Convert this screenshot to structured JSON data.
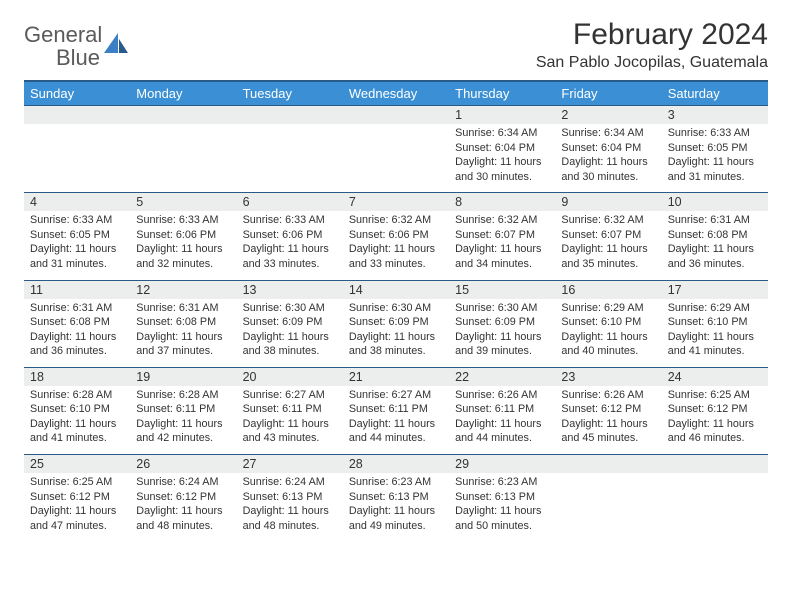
{
  "brand": {
    "name1": "General",
    "name2": "Blue"
  },
  "title": "February 2024",
  "location": "San Pablo Jocopilas, Guatemala",
  "colors": {
    "header_bg": "#3b8fd4",
    "header_border": "#2a5a87",
    "daynum_bg": "#eceded",
    "text": "#333333",
    "brand_gray": "#5a5a5a",
    "brand_blue": "#3b7fc4"
  },
  "typography": {
    "title_fontsize": 30,
    "location_fontsize": 16,
    "dayheader_fontsize": 13,
    "daynum_fontsize": 12.5,
    "detail_fontsize": 10.8
  },
  "day_headers": [
    "Sunday",
    "Monday",
    "Tuesday",
    "Wednesday",
    "Thursday",
    "Friday",
    "Saturday"
  ],
  "weeks": [
    [
      null,
      null,
      null,
      null,
      {
        "n": "1",
        "sr": "6:34 AM",
        "ss": "6:04 PM",
        "dl": "11 hours and 30 minutes."
      },
      {
        "n": "2",
        "sr": "6:34 AM",
        "ss": "6:04 PM",
        "dl": "11 hours and 30 minutes."
      },
      {
        "n": "3",
        "sr": "6:33 AM",
        "ss": "6:05 PM",
        "dl": "11 hours and 31 minutes."
      }
    ],
    [
      {
        "n": "4",
        "sr": "6:33 AM",
        "ss": "6:05 PM",
        "dl": "11 hours and 31 minutes."
      },
      {
        "n": "5",
        "sr": "6:33 AM",
        "ss": "6:06 PM",
        "dl": "11 hours and 32 minutes."
      },
      {
        "n": "6",
        "sr": "6:33 AM",
        "ss": "6:06 PM",
        "dl": "11 hours and 33 minutes."
      },
      {
        "n": "7",
        "sr": "6:32 AM",
        "ss": "6:06 PM",
        "dl": "11 hours and 33 minutes."
      },
      {
        "n": "8",
        "sr": "6:32 AM",
        "ss": "6:07 PM",
        "dl": "11 hours and 34 minutes."
      },
      {
        "n": "9",
        "sr": "6:32 AM",
        "ss": "6:07 PM",
        "dl": "11 hours and 35 minutes."
      },
      {
        "n": "10",
        "sr": "6:31 AM",
        "ss": "6:08 PM",
        "dl": "11 hours and 36 minutes."
      }
    ],
    [
      {
        "n": "11",
        "sr": "6:31 AM",
        "ss": "6:08 PM",
        "dl": "11 hours and 36 minutes."
      },
      {
        "n": "12",
        "sr": "6:31 AM",
        "ss": "6:08 PM",
        "dl": "11 hours and 37 minutes."
      },
      {
        "n": "13",
        "sr": "6:30 AM",
        "ss": "6:09 PM",
        "dl": "11 hours and 38 minutes."
      },
      {
        "n": "14",
        "sr": "6:30 AM",
        "ss": "6:09 PM",
        "dl": "11 hours and 38 minutes."
      },
      {
        "n": "15",
        "sr": "6:30 AM",
        "ss": "6:09 PM",
        "dl": "11 hours and 39 minutes."
      },
      {
        "n": "16",
        "sr": "6:29 AM",
        "ss": "6:10 PM",
        "dl": "11 hours and 40 minutes."
      },
      {
        "n": "17",
        "sr": "6:29 AM",
        "ss": "6:10 PM",
        "dl": "11 hours and 41 minutes."
      }
    ],
    [
      {
        "n": "18",
        "sr": "6:28 AM",
        "ss": "6:10 PM",
        "dl": "11 hours and 41 minutes."
      },
      {
        "n": "19",
        "sr": "6:28 AM",
        "ss": "6:11 PM",
        "dl": "11 hours and 42 minutes."
      },
      {
        "n": "20",
        "sr": "6:27 AM",
        "ss": "6:11 PM",
        "dl": "11 hours and 43 minutes."
      },
      {
        "n": "21",
        "sr": "6:27 AM",
        "ss": "6:11 PM",
        "dl": "11 hours and 44 minutes."
      },
      {
        "n": "22",
        "sr": "6:26 AM",
        "ss": "6:11 PM",
        "dl": "11 hours and 44 minutes."
      },
      {
        "n": "23",
        "sr": "6:26 AM",
        "ss": "6:12 PM",
        "dl": "11 hours and 45 minutes."
      },
      {
        "n": "24",
        "sr": "6:25 AM",
        "ss": "6:12 PM",
        "dl": "11 hours and 46 minutes."
      }
    ],
    [
      {
        "n": "25",
        "sr": "6:25 AM",
        "ss": "6:12 PM",
        "dl": "11 hours and 47 minutes."
      },
      {
        "n": "26",
        "sr": "6:24 AM",
        "ss": "6:12 PM",
        "dl": "11 hours and 48 minutes."
      },
      {
        "n": "27",
        "sr": "6:24 AM",
        "ss": "6:13 PM",
        "dl": "11 hours and 48 minutes."
      },
      {
        "n": "28",
        "sr": "6:23 AM",
        "ss": "6:13 PM",
        "dl": "11 hours and 49 minutes."
      },
      {
        "n": "29",
        "sr": "6:23 AM",
        "ss": "6:13 PM",
        "dl": "11 hours and 50 minutes."
      },
      null,
      null
    ]
  ],
  "labels": {
    "sunrise": "Sunrise: ",
    "sunset": "Sunset: ",
    "daylight": "Daylight: "
  }
}
